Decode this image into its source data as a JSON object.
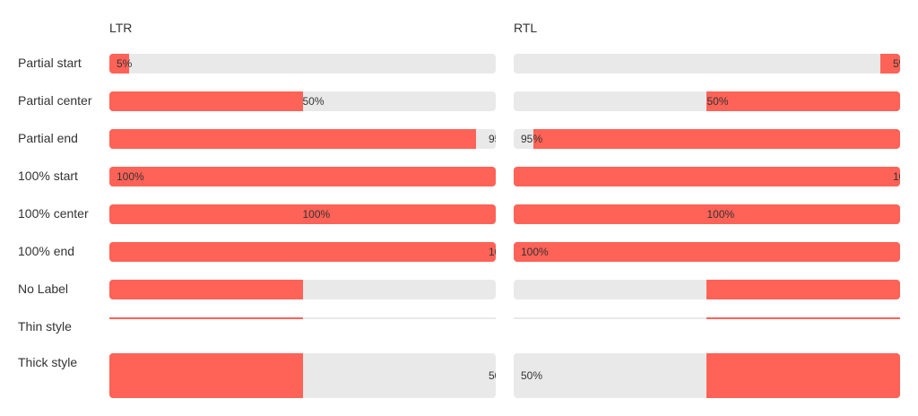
{
  "columns": {
    "ltr": "LTR",
    "rtl": "RTL"
  },
  "colors": {
    "fill": "#ff6257",
    "track": "#e9e9e9",
    "text_dark": "#333333",
    "text_light": "#ffffff"
  },
  "rows": [
    {
      "label": "Partial start",
      "progress": 0.05,
      "label_text": "5%",
      "align": "start",
      "style": "normal"
    },
    {
      "label": "Partial center",
      "progress": 0.5,
      "label_text": "50%",
      "align": "center",
      "style": "normal"
    },
    {
      "label": "Partial end",
      "progress": 0.95,
      "label_text": "95%",
      "align": "end",
      "style": "normal"
    },
    {
      "label": "100% start",
      "progress": 1.0,
      "label_text": "100%",
      "align": "start",
      "style": "normal"
    },
    {
      "label": "100% center",
      "progress": 1.0,
      "label_text": "100%",
      "align": "center",
      "style": "normal"
    },
    {
      "label": "100% end",
      "progress": 1.0,
      "label_text": "100%",
      "align": "end",
      "style": "normal"
    },
    {
      "label": "No Label",
      "progress": 0.5,
      "label_text": "",
      "align": "none",
      "style": "normal"
    },
    {
      "label": "Thin style",
      "progress": 0.5,
      "label_text": "",
      "align": "none",
      "style": "thin"
    },
    {
      "label": "Thick style",
      "progress": 0.5,
      "label_text": "50%",
      "align": "end",
      "style": "thick"
    }
  ]
}
